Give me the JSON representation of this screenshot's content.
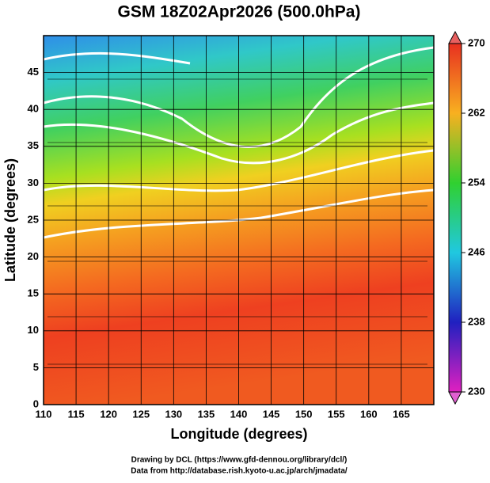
{
  "chart_data": {
    "type": "map",
    "title": "GSM 18Z02Apr2026 (500.0hPa)",
    "x_label": "Longitude (degrees)",
    "y_label": "Latitude  (degrees)",
    "xlim": [
      110,
      170
    ],
    "xticks": [
      110,
      115,
      120,
      125,
      130,
      135,
      140,
      145,
      150,
      155,
      160,
      165
    ],
    "ylim": [
      0,
      50
    ],
    "yticks": [
      0,
      5,
      10,
      15,
      20,
      25,
      30,
      35,
      40,
      45
    ],
    "grid": true,
    "colorbar": {
      "lim": [
        230,
        270
      ],
      "ticks": [
        230,
        238,
        246,
        254,
        262,
        270
      ]
    }
  },
  "credits": [
    "Drawing by DCL (https://www.gfd-dennou.org/library/dcl/)",
    "Data from http://database.rish.kyoto-u.ac.jp/arch/jmadata/"
  ]
}
